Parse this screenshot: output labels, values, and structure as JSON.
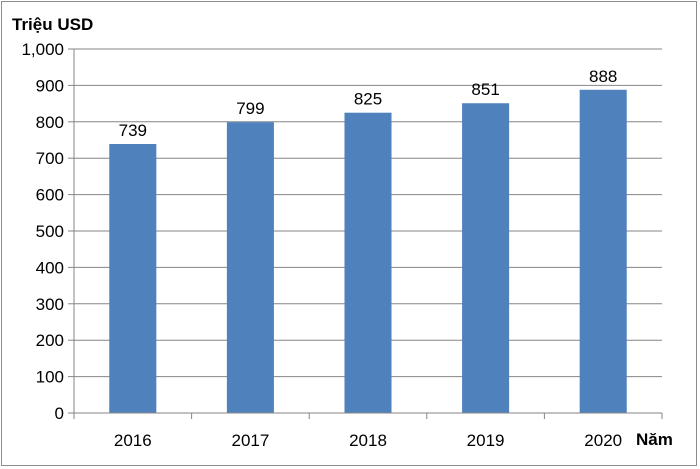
{
  "chart_data": {
    "type": "bar",
    "title": "",
    "ylabel": "Triệu USD",
    "xlabel": "Năm",
    "categories": [
      "2016",
      "2017",
      "2018",
      "2019",
      "2020"
    ],
    "values": [
      739,
      799,
      825,
      851,
      888
    ],
    "ylim": [
      0,
      1000
    ],
    "ytick_step": 100,
    "ytick_labels": [
      "0",
      "100",
      "200",
      "300",
      "400",
      "500",
      "600",
      "700",
      "800",
      "900",
      "1,000"
    ],
    "grid": true,
    "legend": "none",
    "bar_color": "#4f81bd",
    "grid_color": "#868686"
  }
}
